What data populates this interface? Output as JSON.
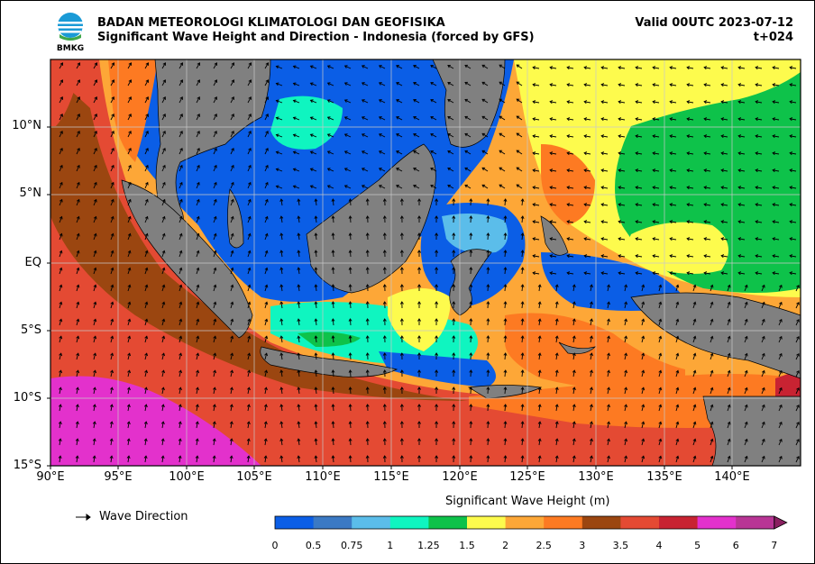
{
  "header": {
    "agency": "BADAN METEOROLOGI KLIMATOLOGI DAN GEOFISIKA",
    "product": "Significant Wave Height and Direction - Indonesia (forced by GFS)",
    "valid": "Valid 00UTC 2023-07-12",
    "step": "t+024",
    "logo_text": "BMKG"
  },
  "axes": {
    "lat_labels": [
      "10°N",
      "5°N",
      "EQ",
      "5°S",
      "10°S",
      "15°S"
    ],
    "lon_labels": [
      "90°E",
      "95°E",
      "100°E",
      "105°E",
      "110°E",
      "115°E",
      "120°E",
      "125°E",
      "130°E",
      "135°E",
      "140°E"
    ]
  },
  "legend": {
    "arrow_label": "Wave Direction",
    "colorbar_title": "Significant Wave Height (m)",
    "ticks": [
      "0",
      "0.5",
      "0.75",
      "1",
      "1.25",
      "1.5",
      "2",
      "2.5",
      "3",
      "3.5",
      "4",
      "5",
      "6",
      "7"
    ],
    "colors": [
      "#0b5ee6",
      "#3b79c4",
      "#5bbdea",
      "#0ff5c0",
      "#0ec24a",
      "#fdfb4d",
      "#fda737",
      "#fd7a22",
      "#9b4610",
      "#e44a33",
      "#c82332",
      "#e331cc",
      "#b83595"
    ],
    "land_color": "#808080"
  }
}
